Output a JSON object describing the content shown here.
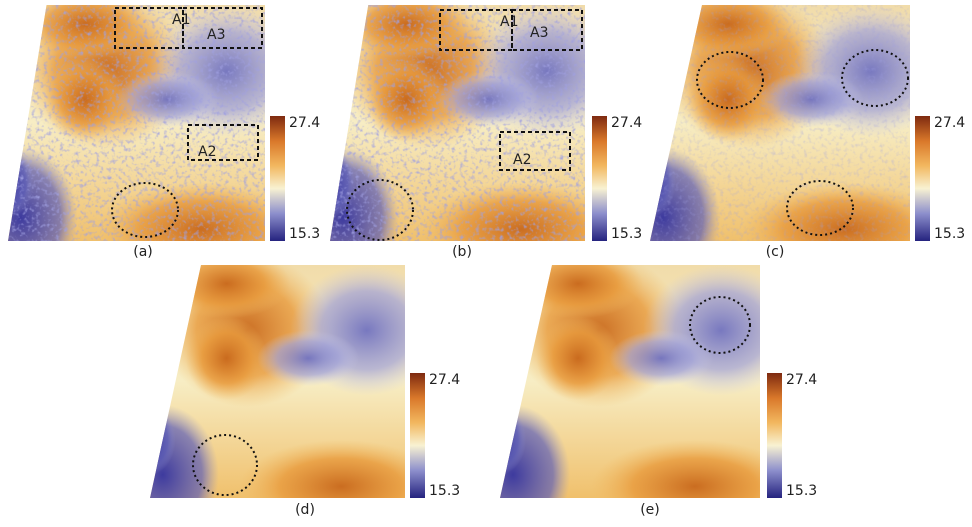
{
  "panels": [
    {
      "caption": "(a)",
      "colorbar": {
        "max": 27.4,
        "min": 15.3
      },
      "regions": [
        "A1",
        "A3",
        "A2"
      ]
    },
    {
      "caption": "(b)",
      "colorbar": {
        "max": 27.4,
        "min": 15.3
      },
      "regions": [
        "A1",
        "A3",
        "A2"
      ]
    },
    {
      "caption": "(c)",
      "colorbar": {
        "max": 27.4,
        "min": 15.3
      }
    },
    {
      "caption": "(d)",
      "colorbar": {
        "max": 27.4,
        "min": 15.3
      }
    },
    {
      "caption": "(e)",
      "colorbar": {
        "max": 27.4,
        "min": 15.3
      }
    }
  ]
}
